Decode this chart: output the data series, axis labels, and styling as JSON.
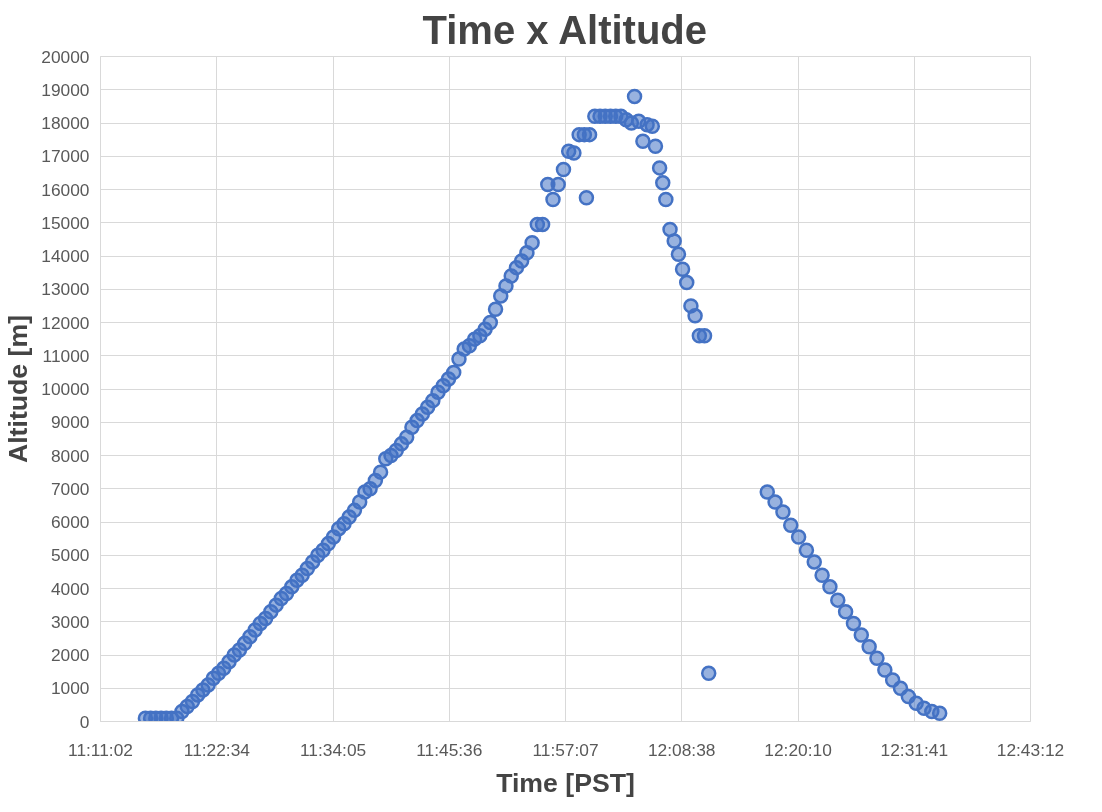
{
  "chart_data": {
    "type": "scatter",
    "title": "Time x Altitude",
    "xlabel": "Time [PST]",
    "ylabel": "Altitude [m]",
    "marker": "circle",
    "grid": true,
    "xlim": [
      11.18389,
      12.72
    ],
    "xticks": [
      {
        "value": 11.18389,
        "label": "11:11:02"
      },
      {
        "value": 11.37611,
        "label": "11:22:34"
      },
      {
        "value": 11.56806,
        "label": "11:34:05"
      },
      {
        "value": 11.76,
        "label": "11:45:36"
      },
      {
        "value": 11.95194,
        "label": "11:57:07"
      },
      {
        "value": 12.14389,
        "label": "12:08:38"
      },
      {
        "value": 12.33611,
        "label": "12:20:10"
      },
      {
        "value": 12.52806,
        "label": "12:31:41"
      },
      {
        "value": 12.72,
        "label": "12:43:12"
      }
    ],
    "ylim": [
      0,
      20000
    ],
    "yticks": [
      0,
      1000,
      2000,
      3000,
      4000,
      5000,
      6000,
      7000,
      8000,
      9000,
      10000,
      11000,
      12000,
      13000,
      14000,
      15000,
      16000,
      17000,
      18000,
      19000,
      20000
    ],
    "series": [
      {
        "color": "#4472c4",
        "x": [
          11.2581,
          11.2667,
          11.2753,
          11.284,
          11.2926,
          11.3012,
          11.3099,
          11.3185,
          11.3271,
          11.3358,
          11.3444,
          11.353,
          11.3617,
          11.3703,
          11.3789,
          11.3875,
          11.3962,
          11.4048,
          11.4134,
          11.4221,
          11.4307,
          11.4393,
          11.448,
          11.4566,
          11.4652,
          11.4739,
          11.4825,
          11.4911,
          11.4998,
          11.5084,
          11.517,
          11.5256,
          11.5343,
          11.5429,
          11.5515,
          11.5602,
          11.5688,
          11.5774,
          11.5861,
          11.5947,
          11.6033,
          11.612,
          11.6206,
          11.6292,
          11.6379,
          11.6465,
          11.6551,
          11.6637,
          11.6724,
          11.681,
          11.6896,
          11.6983,
          11.7069,
          11.7155,
          11.7242,
          11.7328,
          11.7414,
          11.7501,
          11.7587,
          11.7673,
          11.776,
          11.7846,
          11.7932,
          11.8018,
          11.8105,
          11.8191,
          11.8277,
          11.8364,
          11.845,
          11.8536,
          11.8623,
          11.8709,
          11.8795,
          11.8882,
          11.8968,
          11.9054,
          11.9141,
          11.9227,
          11.9313,
          11.9399,
          11.9486,
          11.9572,
          11.9658,
          11.9745,
          11.9831,
          11.9865,
          11.9917,
          12.0004,
          12.009,
          12.0176,
          12.0263,
          12.0349,
          12.0435,
          12.0522,
          12.0608,
          12.066,
          12.0729,
          12.0798,
          12.0867,
          12.0953,
          12.1005,
          12.1074,
          12.1126,
          12.1177,
          12.1246,
          12.1315,
          12.1385,
          12.1453,
          12.1522,
          12.1591,
          12.166,
          12.173,
          12.1816,
          12.1885,
          12.2852,
          12.2981,
          12.3111,
          12.324,
          12.337,
          12.3499,
          12.3628,
          12.3758,
          12.3887,
          12.4017,
          12.4146,
          12.4276,
          12.4405,
          12.4535,
          12.4664,
          12.4794,
          12.4923,
          12.5053,
          12.5182,
          12.5312,
          12.5441,
          12.557,
          12.57
        ],
        "values": [
          100,
          100,
          100,
          100,
          100,
          100,
          100,
          300,
          450,
          600,
          800,
          950,
          1100,
          1300,
          1450,
          1600,
          1800,
          2000,
          2150,
          2350,
          2550,
          2750,
          2950,
          3100,
          3300,
          3500,
          3700,
          3850,
          4050,
          4250,
          4400,
          4600,
          4800,
          5000,
          5150,
          5350,
          5550,
          5800,
          5950,
          6150,
          6350,
          6600,
          6900,
          7000,
          7250,
          7500,
          7900,
          8000,
          8150,
          8350,
          8550,
          8850,
          9050,
          9250,
          9450,
          9650,
          9900,
          10100,
          10300,
          10500,
          10900,
          11200,
          11300,
          11500,
          11600,
          11800,
          12000,
          12400,
          12800,
          13100,
          13400,
          13650,
          13850,
          14100,
          14400,
          14950,
          14950,
          16150,
          15700,
          16150,
          16600,
          17150,
          17100,
          17650,
          17650,
          15750,
          17650,
          18200,
          18200,
          18200,
          18200,
          18200,
          18200,
          18100,
          18000,
          18800,
          18050,
          17450,
          17950,
          17900,
          17300,
          16650,
          16200,
          15700,
          14800,
          14450,
          14050,
          13600,
          13200,
          12500,
          12200,
          11600,
          11600,
          1450,
          6900,
          6600,
          6300,
          5900,
          5550,
          5150,
          4800,
          4400,
          4050,
          3650,
          3300,
          2950,
          2600,
          2250,
          1900,
          1550,
          1250,
          1000,
          750,
          550,
          400,
          300,
          250
        ]
      }
    ]
  }
}
